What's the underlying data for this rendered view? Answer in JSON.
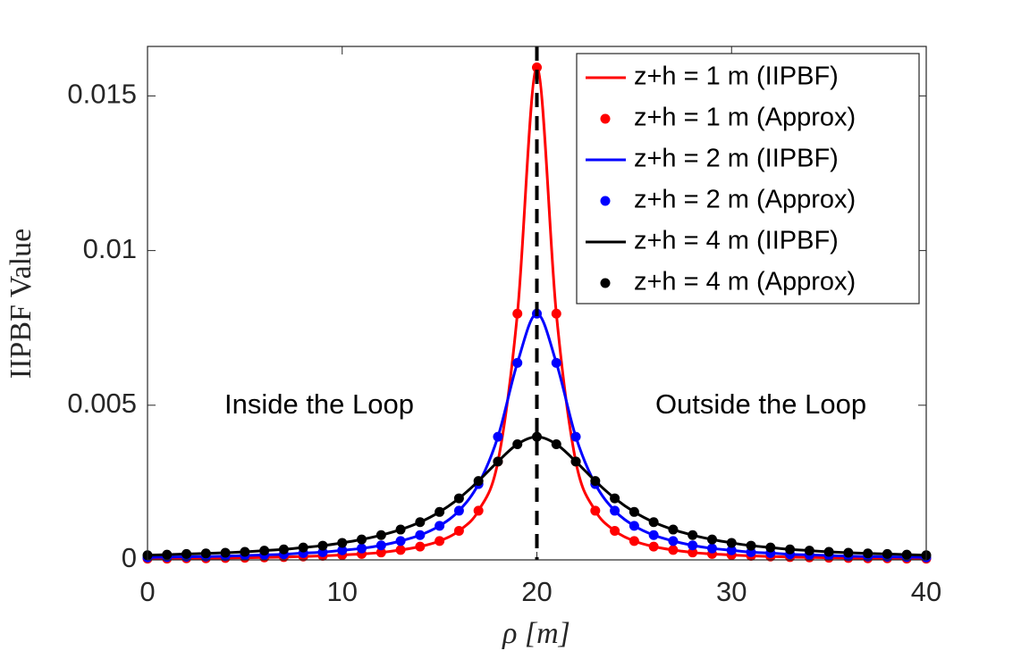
{
  "chart_data": {
    "type": "line",
    "xlabel": "ρ [m]",
    "ylabel": "IIPBF Value",
    "x": [
      0,
      1,
      2,
      3,
      4,
      5,
      6,
      7,
      8,
      9,
      10,
      11,
      12,
      13,
      14,
      15,
      16,
      17,
      18,
      19,
      20,
      21,
      22,
      23,
      24,
      25,
      26,
      27,
      28,
      29,
      30,
      31,
      32,
      33,
      34,
      35,
      36,
      37,
      38,
      39,
      40
    ],
    "series": [
      {
        "name": "z+h = 1 m (IIPBF)",
        "color": "#ff0000",
        "mode": "line",
        "values": [
          4e-05,
          4e-05,
          5e-05,
          5e-05,
          6e-05,
          7e-05,
          8e-05,
          9e-05,
          0.00011,
          0.00013,
          0.00016,
          0.00019,
          0.00024,
          0.00032,
          0.00043,
          0.00061,
          0.00094,
          0.00159,
          0.00318,
          0.00796,
          0.01592,
          0.00796,
          0.00318,
          0.00159,
          0.00094,
          0.00061,
          0.00043,
          0.00032,
          0.00024,
          0.00019,
          0.00016,
          0.00013,
          0.00011,
          9e-05,
          8e-05,
          7e-05,
          6e-05,
          5e-05,
          5e-05,
          4e-05,
          4e-05
        ]
      },
      {
        "name": "z+h = 1 m (Approx)",
        "color": "#ff0000",
        "mode": "marker",
        "values": [
          4e-05,
          4e-05,
          5e-05,
          5e-05,
          6e-05,
          7e-05,
          8e-05,
          9e-05,
          0.00011,
          0.00013,
          0.00016,
          0.00019,
          0.00024,
          0.00032,
          0.00043,
          0.00061,
          0.00094,
          0.00159,
          0.00318,
          0.00796,
          0.01592,
          0.00796,
          0.00318,
          0.00159,
          0.00094,
          0.00061,
          0.00043,
          0.00032,
          0.00024,
          0.00019,
          0.00016,
          0.00013,
          0.00011,
          9e-05,
          8e-05,
          7e-05,
          6e-05,
          5e-05,
          5e-05,
          4e-05,
          4e-05
        ]
      },
      {
        "name": "z+h = 2 m (IIPBF)",
        "color": "#0000ff",
        "mode": "line",
        "values": [
          8e-05,
          9e-05,
          0.0001,
          0.00011,
          0.00012,
          0.00014,
          0.00016,
          0.00018,
          0.00022,
          0.00025,
          0.00031,
          0.00037,
          0.00047,
          0.00061,
          0.0008,
          0.0011,
          0.00159,
          0.00245,
          0.00398,
          0.00637,
          0.00796,
          0.00637,
          0.00398,
          0.00245,
          0.00159,
          0.0011,
          0.0008,
          0.00061,
          0.00047,
          0.00037,
          0.00031,
          0.00025,
          0.00022,
          0.00018,
          0.00016,
          0.00014,
          0.00012,
          0.00011,
          0.0001,
          9e-05,
          8e-05
        ]
      },
      {
        "name": "z+h = 2 m (Approx)",
        "color": "#0000ff",
        "mode": "marker",
        "values": [
          8e-05,
          9e-05,
          0.0001,
          0.00011,
          0.00012,
          0.00014,
          0.00016,
          0.00018,
          0.00022,
          0.00025,
          0.00031,
          0.00037,
          0.00047,
          0.00061,
          0.0008,
          0.0011,
          0.00159,
          0.00245,
          0.00398,
          0.00637,
          0.00796,
          0.00637,
          0.00398,
          0.00245,
          0.00159,
          0.0011,
          0.0008,
          0.00061,
          0.00047,
          0.00037,
          0.00031,
          0.00025,
          0.00022,
          0.00018,
          0.00016,
          0.00014,
          0.00012,
          0.00011,
          0.0001,
          9e-05,
          8e-05
        ]
      },
      {
        "name": "z+h = 4 m (IIPBF)",
        "color": "#000000",
        "mode": "line",
        "values": [
          0.00015,
          0.00017,
          0.00019,
          0.00021,
          0.00023,
          0.00026,
          0.0003,
          0.00034,
          0.0004,
          0.00046,
          0.00055,
          0.00066,
          0.0008,
          0.00098,
          0.00122,
          0.00155,
          0.00199,
          0.00255,
          0.00318,
          0.00374,
          0.00398,
          0.00374,
          0.00318,
          0.00255,
          0.00199,
          0.00155,
          0.00122,
          0.00098,
          0.0008,
          0.00066,
          0.00055,
          0.00046,
          0.0004,
          0.00034,
          0.0003,
          0.00026,
          0.00023,
          0.00021,
          0.00019,
          0.00017,
          0.00015
        ]
      },
      {
        "name": "z+h = 4 m (Approx)",
        "color": "#000000",
        "mode": "marker",
        "values": [
          0.00015,
          0.00017,
          0.00019,
          0.00021,
          0.00023,
          0.00026,
          0.0003,
          0.00034,
          0.0004,
          0.00046,
          0.00055,
          0.00066,
          0.0008,
          0.00098,
          0.00122,
          0.00155,
          0.00199,
          0.00255,
          0.00318,
          0.00374,
          0.00398,
          0.00374,
          0.00318,
          0.00255,
          0.00199,
          0.00155,
          0.00122,
          0.00098,
          0.0008,
          0.00066,
          0.00055,
          0.00046,
          0.0004,
          0.00034,
          0.0003,
          0.00026,
          0.00023,
          0.00021,
          0.00019,
          0.00017,
          0.00015
        ]
      }
    ],
    "annotations": [
      "Inside the Loop",
      "Outside the Loop"
    ],
    "vline": 20,
    "xlim": [
      0,
      40
    ],
    "xticks": [
      0,
      10,
      20,
      30,
      40
    ],
    "ylim": [
      0,
      0.0166
    ],
    "yticks": [
      0,
      0.005,
      0.01,
      0.015
    ],
    "legend": "upper right",
    "grid": false
  }
}
